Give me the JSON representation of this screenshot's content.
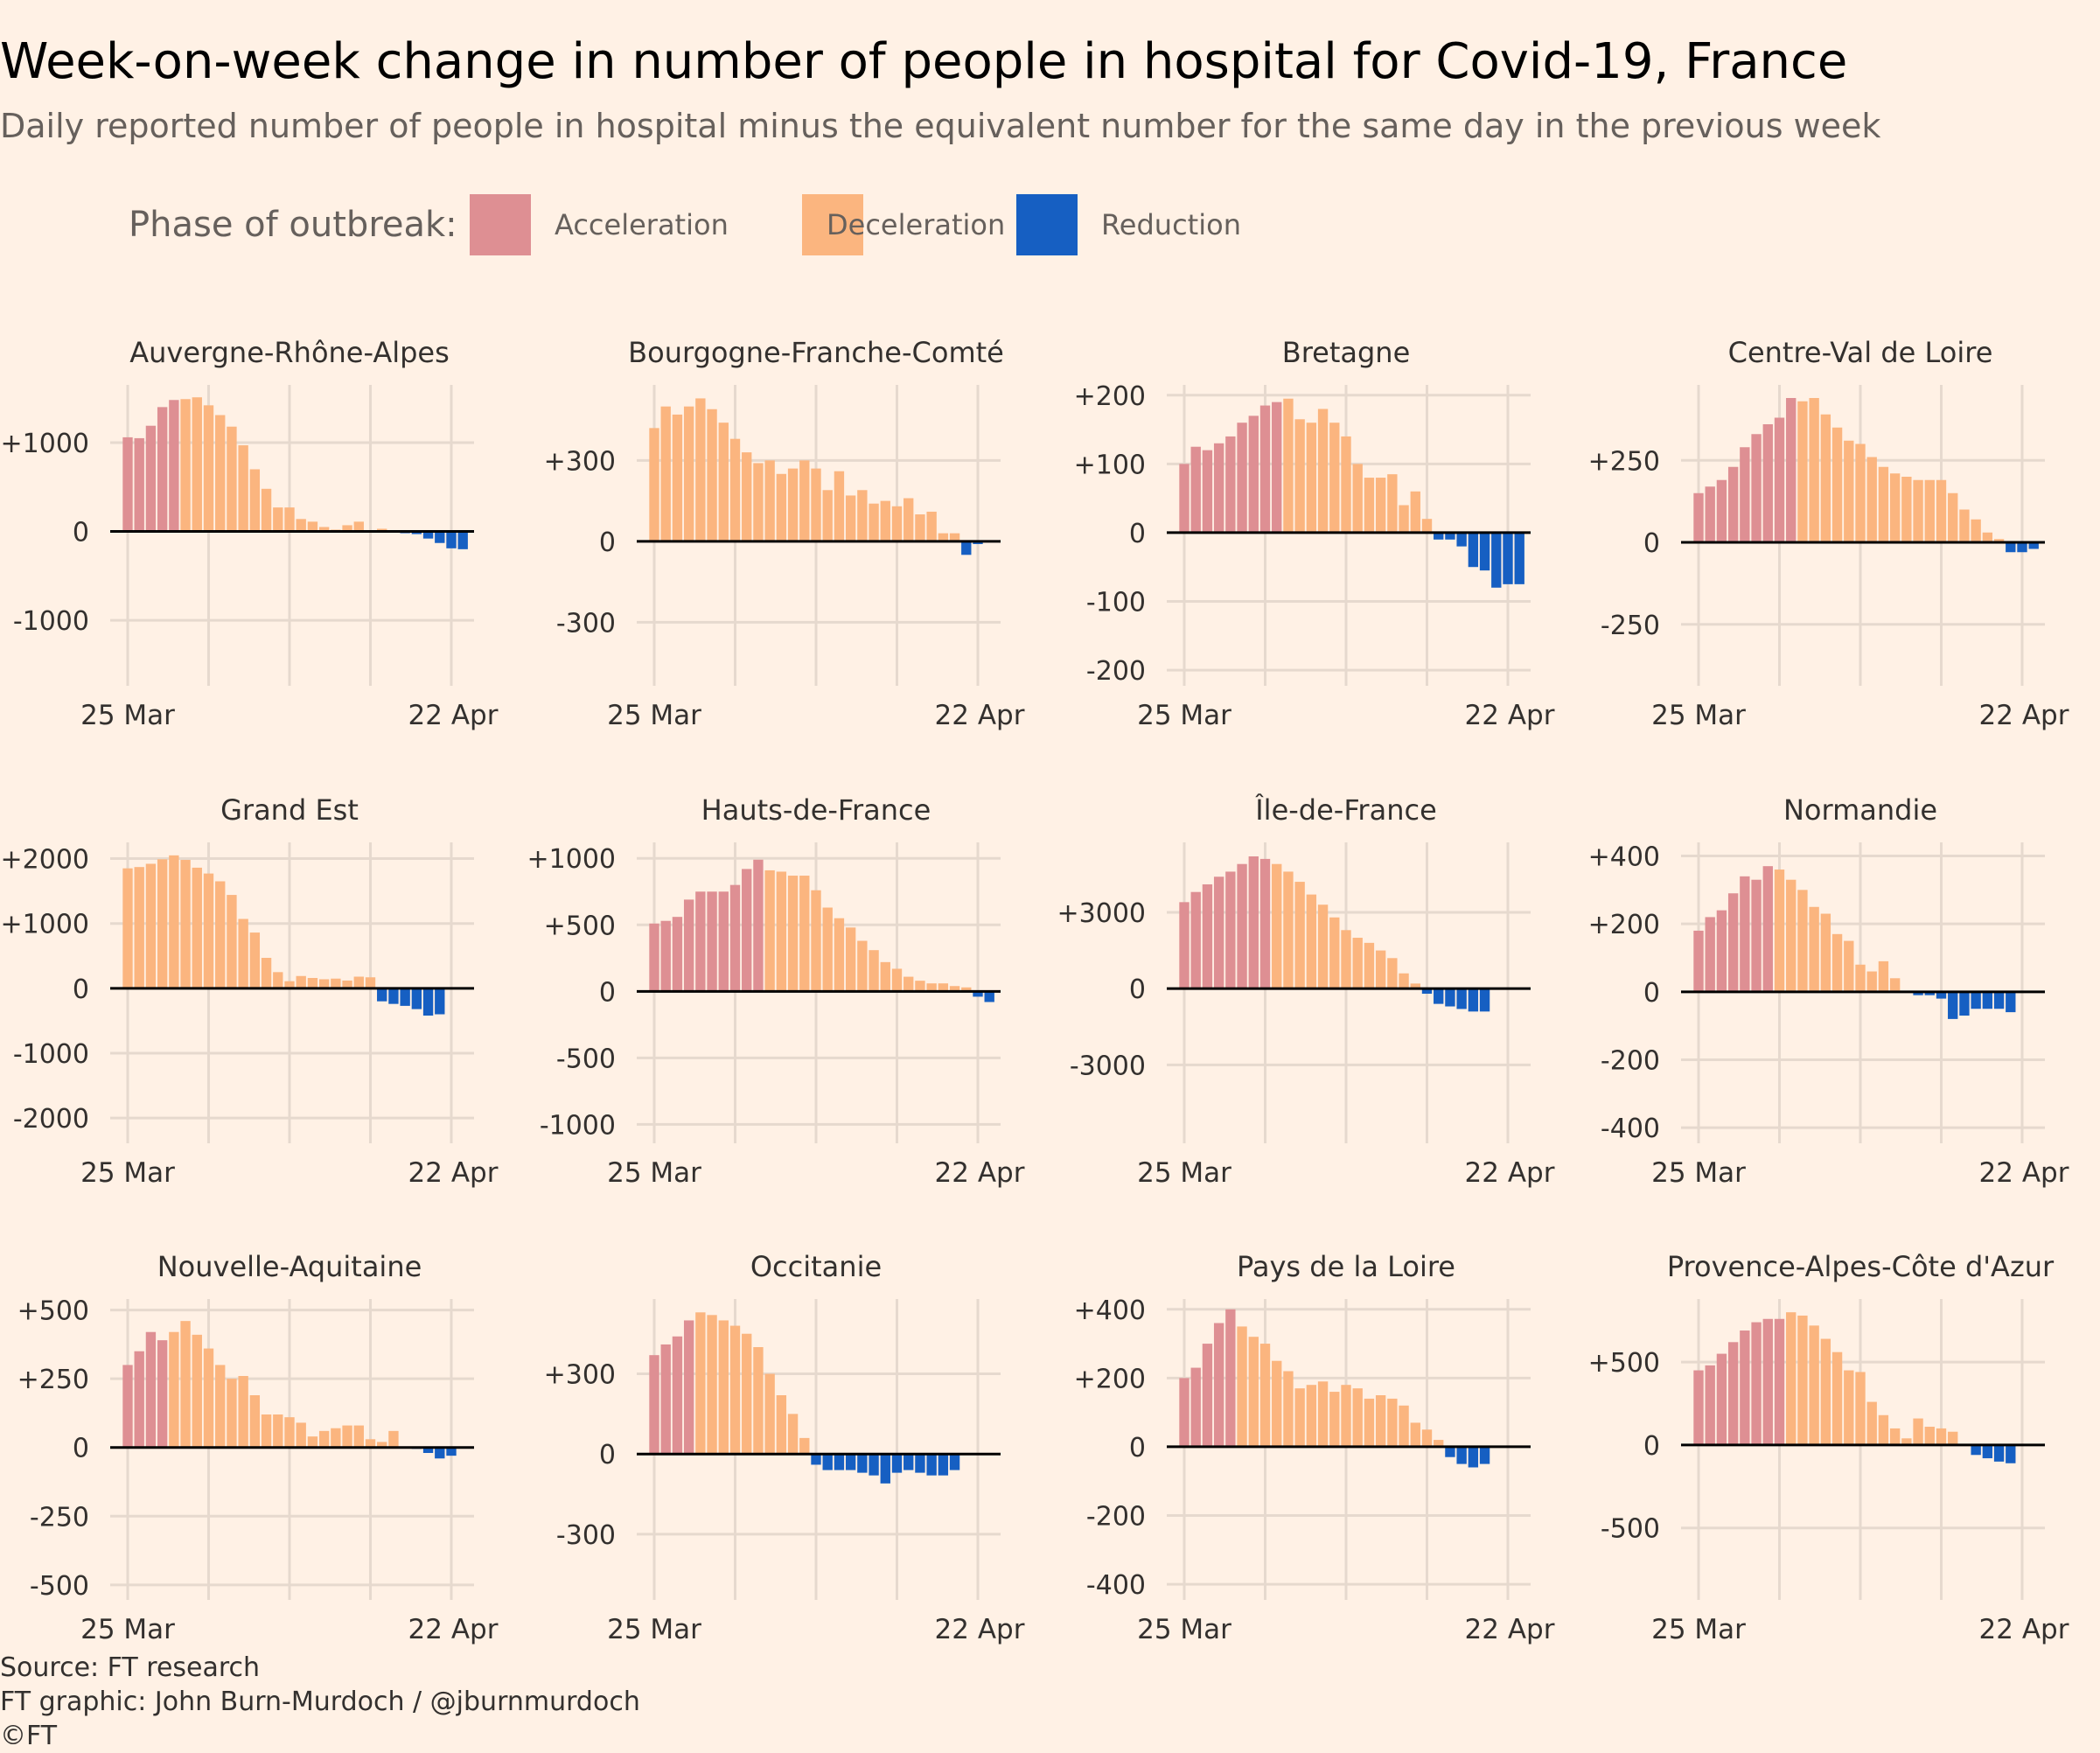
{
  "title": "Week-on-week change in number of people in hospital for Covid-19, France",
  "subtitle": "Daily reported number of people in hospital minus the equivalent number for the same day in the previous week",
  "legend": {
    "title": "Phase of outbreak:",
    "items": [
      {
        "label": "Acceleration",
        "color": "#de8f93"
      },
      {
        "label": "Deceleration",
        "color": "#fbb57f"
      },
      {
        "label": "Reduction",
        "color": "#165fc2"
      }
    ]
  },
  "colors": {
    "background": "#fff1e5",
    "gridline": "#e6d9ce",
    "zero_line": "#000000",
    "text": "#33302e",
    "muted_text": "#66605c"
  },
  "chart_data": [
    {
      "type": "bar",
      "title": "Auvergne-Rhône-Alpes",
      "x_range": [
        "25 Mar",
        "23 Apr"
      ],
      "x_ticks": [
        "25 Mar",
        "22 Apr"
      ],
      "y_ticks": [
        -1000,
        0,
        1000
      ],
      "y_tick_labels": [
        "-1000",
        "0",
        "+1000"
      ],
      "ylim": [
        -1600,
        1650
      ],
      "values": [
        1060,
        1050,
        1190,
        1400,
        1480,
        1490,
        1510,
        1420,
        1310,
        1180,
        970,
        700,
        480,
        270,
        270,
        140,
        110,
        50,
        20,
        70,
        110,
        10,
        30,
        -10,
        -20,
        -30,
        -80,
        -130,
        -190,
        -200
      ],
      "phase": [
        "acc",
        "acc",
        "acc",
        "acc",
        "acc",
        "dec",
        "dec",
        "dec",
        "dec",
        "dec",
        "dec",
        "dec",
        "dec",
        "dec",
        "dec",
        "dec",
        "dec",
        "dec",
        "dec",
        "dec",
        "dec",
        "dec",
        "dec",
        "red",
        "red",
        "red",
        "red",
        "red",
        "red",
        "red"
      ]
    },
    {
      "type": "bar",
      "title": "Bourgogne-Franche-Comté",
      "x_range": [
        "25 Mar",
        "23 Apr"
      ],
      "x_ticks": [
        "25 Mar",
        "22 Apr"
      ],
      "y_ticks": [
        -300,
        0,
        300
      ],
      "y_tick_labels": [
        "-300",
        "0",
        "+300"
      ],
      "ylim": [
        -490,
        580
      ],
      "values": [
        420,
        500,
        470,
        500,
        530,
        490,
        440,
        380,
        330,
        290,
        300,
        250,
        270,
        300,
        270,
        190,
        260,
        170,
        190,
        140,
        150,
        130,
        160,
        100,
        110,
        30,
        30,
        -50,
        -10,
        0
      ],
      "phase": [
        "dec",
        "dec",
        "dec",
        "dec",
        "dec",
        "dec",
        "dec",
        "dec",
        "dec",
        "dec",
        "dec",
        "dec",
        "dec",
        "dec",
        "dec",
        "dec",
        "dec",
        "dec",
        "dec",
        "dec",
        "dec",
        "dec",
        "dec",
        "dec",
        "dec",
        "dec",
        "dec",
        "red",
        "red",
        "red"
      ]
    },
    {
      "type": "bar",
      "title": "Bretagne",
      "x_range": [
        "25 Mar",
        "23 Apr"
      ],
      "x_ticks": [
        "25 Mar",
        "22 Apr"
      ],
      "y_ticks": [
        -200,
        -100,
        0,
        100,
        200
      ],
      "y_tick_labels": [
        "-200",
        "-100",
        "0",
        "+100",
        "+200"
      ],
      "ylim": [
        -205,
        215
      ],
      "values": [
        100,
        125,
        120,
        130,
        140,
        160,
        170,
        185,
        190,
        195,
        165,
        160,
        180,
        160,
        140,
        100,
        80,
        80,
        85,
        40,
        60,
        20,
        -10,
        -10,
        -20,
        -50,
        -55,
        -80,
        -75,
        -75
      ],
      "phase": [
        "acc",
        "acc",
        "acc",
        "acc",
        "acc",
        "acc",
        "acc",
        "acc",
        "acc",
        "dec",
        "dec",
        "dec",
        "dec",
        "dec",
        "dec",
        "dec",
        "dec",
        "dec",
        "dec",
        "dec",
        "dec",
        "dec",
        "red",
        "red",
        "red",
        "red",
        "red",
        "red",
        "red",
        "red"
      ]
    },
    {
      "type": "bar",
      "title": "Centre-Val de Loire",
      "x_range": [
        "25 Mar",
        "23 Apr"
      ],
      "x_ticks": [
        "25 Mar",
        "22 Apr"
      ],
      "y_ticks": [
        -250,
        0,
        250
      ],
      "y_tick_labels": [
        "-250",
        "0",
        "+250"
      ],
      "ylim": [
        -400,
        480
      ],
      "values": [
        150,
        170,
        190,
        230,
        290,
        330,
        360,
        380,
        440,
        430,
        440,
        390,
        350,
        310,
        300,
        260,
        230,
        210,
        200,
        190,
        190,
        190,
        150,
        100,
        70,
        30,
        10,
        -30,
        -30,
        -20
      ],
      "phase": [
        "acc",
        "acc",
        "acc",
        "acc",
        "acc",
        "acc",
        "acc",
        "acc",
        "acc",
        "dec",
        "dec",
        "dec",
        "dec",
        "dec",
        "dec",
        "dec",
        "dec",
        "dec",
        "dec",
        "dec",
        "dec",
        "dec",
        "dec",
        "dec",
        "dec",
        "dec",
        "dec",
        "red",
        "red",
        "red"
      ]
    },
    {
      "type": "bar",
      "title": "Grand Est",
      "x_range": [
        "25 Mar",
        "23 Apr"
      ],
      "x_ticks": [
        "25 Mar",
        "22 Apr"
      ],
      "y_ticks": [
        -2000,
        -1000,
        0,
        1000,
        2000
      ],
      "y_tick_labels": [
        "-2000",
        "-1000",
        "0",
        "+1000",
        "+2000"
      ],
      "ylim": [
        -2200,
        2250
      ],
      "values": [
        1850,
        1870,
        1920,
        1990,
        2050,
        1980,
        1860,
        1770,
        1650,
        1440,
        1070,
        860,
        470,
        250,
        110,
        190,
        160,
        140,
        150,
        120,
        180,
        170,
        -200,
        -240,
        -270,
        -320,
        -420,
        -400
      ],
      "phase": [
        "dec",
        "dec",
        "dec",
        "dec",
        "dec",
        "dec",
        "dec",
        "dec",
        "dec",
        "dec",
        "dec",
        "dec",
        "dec",
        "dec",
        "dec",
        "dec",
        "dec",
        "dec",
        "dec",
        "dec",
        "dec",
        "dec",
        "red",
        "red",
        "red",
        "red",
        "red",
        "red"
      ]
    },
    {
      "type": "bar",
      "title": "Hauts-de-France",
      "x_range": [
        "25 Mar",
        "23 Apr"
      ],
      "x_ticks": [
        "25 Mar",
        "22 Apr"
      ],
      "y_ticks": [
        -1000,
        -500,
        0,
        500,
        1000
      ],
      "y_tick_labels": [
        "-1000",
        "-500",
        "0",
        "+500",
        "+1000"
      ],
      "ylim": [
        -1050,
        1120
      ],
      "values": [
        510,
        530,
        560,
        690,
        750,
        750,
        750,
        800,
        920,
        990,
        910,
        900,
        870,
        870,
        760,
        630,
        550,
        480,
        380,
        310,
        220,
        170,
        110,
        80,
        60,
        60,
        40,
        30,
        -40,
        -80
      ],
      "phase": [
        "acc",
        "acc",
        "acc",
        "acc",
        "acc",
        "acc",
        "acc",
        "acc",
        "acc",
        "acc",
        "dec",
        "dec",
        "dec",
        "dec",
        "dec",
        "dec",
        "dec",
        "dec",
        "dec",
        "dec",
        "dec",
        "dec",
        "dec",
        "dec",
        "dec",
        "dec",
        "dec",
        "dec",
        "red",
        "red"
      ]
    },
    {
      "type": "bar",
      "title": "Île-de-France",
      "x_range": [
        "25 Mar",
        "23 Apr"
      ],
      "x_ticks": [
        "25 Mar",
        "22 Apr"
      ],
      "y_ticks": [
        -3000,
        0,
        3000
      ],
      "y_tick_labels": [
        "-3000",
        "0",
        "+3000"
      ],
      "ylim": [
        -5600,
        5750
      ],
      "values": [
        3400,
        3800,
        4100,
        4400,
        4600,
        4900,
        5200,
        5100,
        4900,
        4600,
        4200,
        3700,
        3300,
        2800,
        2300,
        2000,
        1800,
        1500,
        1200,
        600,
        200,
        -200,
        -600,
        -700,
        -800,
        -900,
        -900
      ],
      "phase": [
        "acc",
        "acc",
        "acc",
        "acc",
        "acc",
        "acc",
        "acc",
        "acc",
        "dec",
        "dec",
        "dec",
        "dec",
        "dec",
        "dec",
        "dec",
        "dec",
        "dec",
        "dec",
        "dec",
        "dec",
        "dec",
        "red",
        "red",
        "red",
        "red",
        "red",
        "red"
      ]
    },
    {
      "type": "bar",
      "title": "Normandie",
      "x_range": [
        "25 Mar",
        "23 Apr"
      ],
      "x_ticks": [
        "25 Mar",
        "22 Apr"
      ],
      "y_ticks": [
        -400,
        -200,
        0,
        200,
        400
      ],
      "y_tick_labels": [
        "-400",
        "-200",
        "0",
        "+200",
        "+400"
      ],
      "ylim": [
        -410,
        440
      ],
      "values": [
        180,
        220,
        240,
        290,
        340,
        330,
        370,
        360,
        330,
        300,
        250,
        230,
        170,
        150,
        80,
        60,
        90,
        40,
        0,
        -10,
        -10,
        -20,
        -80,
        -70,
        -50,
        -50,
        -50,
        -60
      ],
      "phase": [
        "acc",
        "acc",
        "acc",
        "acc",
        "acc",
        "acc",
        "acc",
        "dec",
        "dec",
        "dec",
        "dec",
        "dec",
        "dec",
        "dec",
        "dec",
        "dec",
        "dec",
        "dec",
        "red",
        "red",
        "red",
        "red",
        "red",
        "red",
        "red",
        "red",
        "red",
        "red"
      ]
    },
    {
      "type": "bar",
      "title": "Nouvelle-Aquitaine",
      "x_range": [
        "25 Mar",
        "23 Apr"
      ],
      "x_ticks": [
        "25 Mar",
        "22 Apr"
      ],
      "y_ticks": [
        -500,
        -250,
        0,
        250,
        500
      ],
      "y_tick_labels": [
        "-500",
        "-250",
        "0",
        "+250",
        "+500"
      ],
      "ylim": [
        -510,
        540
      ],
      "values": [
        300,
        350,
        420,
        390,
        420,
        460,
        410,
        360,
        300,
        250,
        260,
        190,
        120,
        120,
        110,
        90,
        40,
        60,
        70,
        80,
        80,
        30,
        20,
        60,
        0,
        -5,
        -20,
        -40,
        -30
      ],
      "phase": [
        "acc",
        "acc",
        "acc",
        "acc",
        "dec",
        "dec",
        "dec",
        "dec",
        "dec",
        "dec",
        "dec",
        "dec",
        "dec",
        "dec",
        "dec",
        "dec",
        "dec",
        "dec",
        "dec",
        "dec",
        "dec",
        "dec",
        "dec",
        "dec",
        "red",
        "red",
        "red",
        "red",
        "red"
      ]
    },
    {
      "type": "bar",
      "title": "Occitanie",
      "x_range": [
        "25 Mar",
        "23 Apr"
      ],
      "x_ticks": [
        "25 Mar",
        "22 Apr"
      ],
      "y_ticks": [
        -300,
        0,
        300
      ],
      "y_tick_labels": [
        "-300",
        "0",
        "+300"
      ],
      "ylim": [
        -500,
        580
      ],
      "values": [
        370,
        410,
        440,
        500,
        530,
        520,
        500,
        480,
        450,
        400,
        300,
        220,
        150,
        60,
        -40,
        -60,
        -60,
        -60,
        -70,
        -80,
        -110,
        -70,
        -60,
        -70,
        -80,
        -80,
        -60
      ],
      "phase": [
        "acc",
        "acc",
        "acc",
        "acc",
        "dec",
        "dec",
        "dec",
        "dec",
        "dec",
        "dec",
        "dec",
        "dec",
        "dec",
        "dec",
        "red",
        "red",
        "red",
        "red",
        "red",
        "red",
        "red",
        "red",
        "red",
        "red",
        "red",
        "red",
        "red"
      ]
    },
    {
      "type": "bar",
      "title": "Pays de la Loire",
      "x_range": [
        "25 Mar",
        "23 Apr"
      ],
      "x_ticks": [
        "25 Mar",
        "22 Apr"
      ],
      "y_ticks": [
        -400,
        -200,
        0,
        200,
        400
      ],
      "y_tick_labels": [
        "-400",
        "-200",
        "0",
        "+200",
        "+400"
      ],
      "ylim": [
        -410,
        430
      ],
      "values": [
        200,
        230,
        300,
        360,
        400,
        350,
        320,
        300,
        250,
        220,
        170,
        180,
        190,
        160,
        180,
        170,
        140,
        150,
        140,
        120,
        70,
        50,
        20,
        -30,
        -50,
        -60,
        -50
      ],
      "phase": [
        "acc",
        "acc",
        "acc",
        "acc",
        "acc",
        "dec",
        "dec",
        "dec",
        "dec",
        "dec",
        "dec",
        "dec",
        "dec",
        "dec",
        "dec",
        "dec",
        "dec",
        "dec",
        "dec",
        "dec",
        "dec",
        "dec",
        "dec",
        "red",
        "red",
        "red",
        "red"
      ]
    },
    {
      "type": "bar",
      "title": "Provence-Alpes-Côte d'Azur",
      "x_range": [
        "25 Mar",
        "23 Apr"
      ],
      "x_ticks": [
        "25 Mar",
        "22 Apr"
      ],
      "y_ticks": [
        -500,
        0,
        500
      ],
      "y_tick_labels": [
        "-500",
        "0",
        "+500"
      ],
      "ylim": [
        -860,
        880
      ],
      "values": [
        450,
        480,
        550,
        620,
        690,
        740,
        760,
        760,
        800,
        780,
        720,
        640,
        560,
        450,
        440,
        260,
        180,
        100,
        40,
        160,
        110,
        100,
        80,
        0,
        -60,
        -80,
        -100,
        -110
      ],
      "phase": [
        "acc",
        "acc",
        "acc",
        "acc",
        "acc",
        "acc",
        "acc",
        "acc",
        "dec",
        "dec",
        "dec",
        "dec",
        "dec",
        "dec",
        "dec",
        "dec",
        "dec",
        "dec",
        "dec",
        "dec",
        "dec",
        "dec",
        "dec",
        "red",
        "red",
        "red",
        "red",
        "red"
      ]
    }
  ],
  "footer": {
    "source": "Source: FT research",
    "credit": "FT graphic: John Burn-Murdoch / @jburnmurdoch",
    "copyright": "©FT"
  }
}
